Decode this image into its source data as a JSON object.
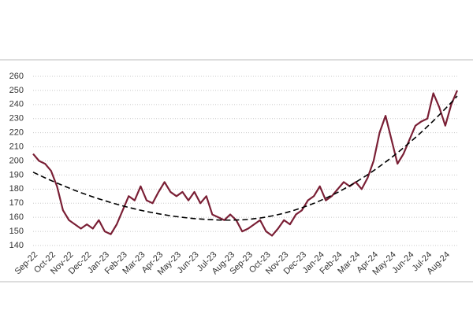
{
  "chart_data": {
    "type": "line",
    "categories": [
      "Sep-22",
      null,
      null,
      "Oct-22",
      null,
      null,
      "Nov-22",
      null,
      null,
      "Dec-22",
      null,
      null,
      "Jan-23",
      null,
      null,
      "Feb-23",
      null,
      null,
      "Mar-23",
      null,
      null,
      "Apr-23",
      null,
      null,
      "May-23",
      null,
      null,
      "Jun-23",
      null,
      null,
      "Jul-23",
      null,
      null,
      "Aug-23",
      null,
      null,
      "Sep-23",
      null,
      null,
      "Oct-23",
      null,
      null,
      "Nov-23",
      null,
      null,
      "Dec-23",
      null,
      null,
      "Jan-24",
      null,
      null,
      "Feb-24",
      null,
      null,
      "Mar-24",
      null,
      null,
      "Apr-24",
      null,
      null,
      "May-24",
      null,
      null,
      "Jun-24",
      null,
      null,
      "Jul-24",
      null,
      null,
      "Aug-24",
      null,
      null
    ],
    "series": [
      {
        "color": "#7a1f35",
        "dashed": false,
        "values": [
          205,
          200,
          198,
          193,
          182,
          165,
          158,
          155,
          152,
          155,
          152,
          158,
          150,
          148,
          155,
          165,
          175,
          172,
          182,
          172,
          170,
          178,
          185,
          178,
          175,
          178,
          172,
          178,
          170,
          175,
          162,
          160,
          158,
          162,
          158,
          150,
          152,
          155,
          158,
          150,
          147,
          152,
          158,
          155,
          162,
          165,
          172,
          175,
          182,
          172,
          175,
          180,
          185,
          182,
          185,
          180,
          188,
          200,
          220,
          232,
          215,
          198,
          205,
          215,
          225,
          228,
          230,
          248,
          238,
          225,
          240,
          250
        ]
      },
      {
        "color": "#000000",
        "dashed": true,
        "values": [
          192,
          190,
          188,
          186.1,
          184.3,
          182.5,
          180.8,
          179.1,
          177.5,
          176,
          174.5,
          173.1,
          171.8,
          170.5,
          169.3,
          168.1,
          167,
          166,
          165,
          164.1,
          163.3,
          162.5,
          161.8,
          161.1,
          160.5,
          160,
          159.5,
          159.1,
          158.8,
          158.5,
          158.3,
          158.1,
          158,
          158,
          158.1,
          158.2,
          158.5,
          159,
          159.5,
          160.2,
          161,
          161.9,
          162.9,
          164.1,
          165.4,
          166.8,
          168.3,
          169.9,
          171.7,
          173.6,
          175.6,
          177.7,
          180,
          182.4,
          184.9,
          187.5,
          190.2,
          193.1,
          196.1,
          199.2,
          202.4,
          205.8,
          209.3,
          212.9,
          216.6,
          220.4,
          224.4,
          228.4,
          232.7,
          237,
          241.4,
          246
        ]
      }
    ],
    "ylim": [
      140,
      260
    ],
    "yticks": [
      140,
      150,
      160,
      170,
      180,
      190,
      200,
      210,
      220,
      230,
      240,
      250,
      260
    ],
    "grid": true
  }
}
